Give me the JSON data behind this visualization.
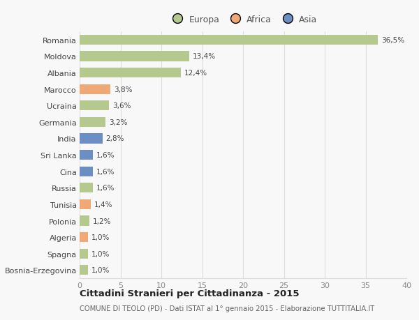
{
  "countries": [
    "Romania",
    "Moldova",
    "Albania",
    "Marocco",
    "Ucraina",
    "Germania",
    "India",
    "Sri Lanka",
    "Cina",
    "Russia",
    "Tunisia",
    "Polonia",
    "Algeria",
    "Spagna",
    "Bosnia-Erzegovina"
  ],
  "values": [
    36.5,
    13.4,
    12.4,
    3.8,
    3.6,
    3.2,
    2.8,
    1.6,
    1.6,
    1.6,
    1.4,
    1.2,
    1.0,
    1.0,
    1.0
  ],
  "labels": [
    "36,5%",
    "13,4%",
    "12,4%",
    "3,8%",
    "3,6%",
    "3,2%",
    "2,8%",
    "1,6%",
    "1,6%",
    "1,6%",
    "1,4%",
    "1,2%",
    "1,0%",
    "1,0%",
    "1,0%"
  ],
  "continents": [
    "Europa",
    "Europa",
    "Europa",
    "Africa",
    "Europa",
    "Europa",
    "Asia",
    "Asia",
    "Asia",
    "Europa",
    "Africa",
    "Europa",
    "Africa",
    "Europa",
    "Europa"
  ],
  "colors": {
    "Europa": "#b5c98e",
    "Africa": "#f0a875",
    "Asia": "#6b8fc4"
  },
  "xlim": [
    0,
    40
  ],
  "xticks": [
    0,
    5,
    10,
    15,
    20,
    25,
    30,
    35,
    40
  ],
  "title": "Cittadini Stranieri per Cittadinanza - 2015",
  "subtitle": "COMUNE DI TEOLO (PD) - Dati ISTAT al 1° gennaio 2015 - Elaborazione TUTTITALIA.IT",
  "bg_color": "#f8f8f8",
  "grid_color": "#dddddd",
  "bar_height": 0.6,
  "legend_order": [
    "Europa",
    "Africa",
    "Asia"
  ]
}
